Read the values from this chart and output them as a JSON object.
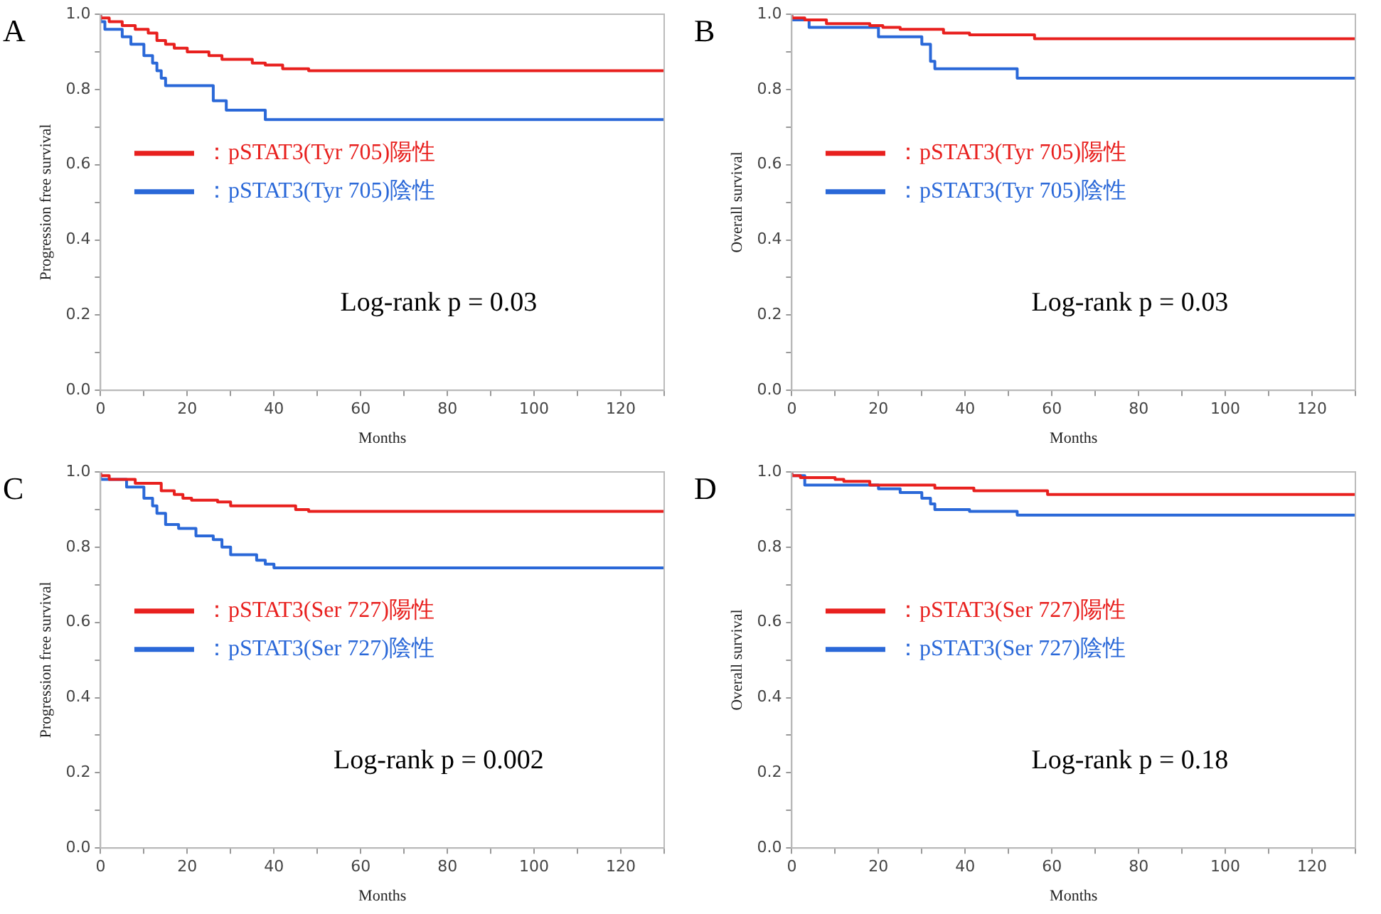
{
  "chart_data": [
    {
      "type": "step",
      "title": "A",
      "xlabel": "Months",
      "ylabel": "Progression free survival",
      "legend": "left",
      "grid": false,
      "xlim": [
        0,
        130
      ],
      "ylim": [
        0,
        1
      ],
      "xticks": [
        0,
        {
          "value": 10,
          "label": null
        },
        20,
        {
          "value": 30,
          "label": null
        },
        40,
        {
          "value": 50,
          "label": null
        },
        60,
        {
          "value": 70,
          "label": null
        },
        80,
        {
          "value": 90,
          "label": null
        },
        100,
        {
          "value": 110,
          "label": null
        },
        120,
        {
          "value": 130,
          "label": null
        }
      ],
      "yticks": [
        {
          "value": 0,
          "label": "0.0"
        },
        {
          "value": 0.1,
          "label": null
        },
        0.2,
        {
          "value": 0.3,
          "label": null
        },
        0.4,
        {
          "value": 0.5,
          "label": null
        },
        0.6,
        {
          "value": 0.7,
          "label": null
        },
        0.8,
        {
          "value": 0.9,
          "label": null
        },
        {
          "value": 1,
          "label": "1.0"
        }
      ],
      "annotations": [
        "Log-rank p = 0.03"
      ],
      "series": [
        {
          "name": "：pSTAT3(Tyr 705)陽性",
          "color": "#e8201e",
          "x": [
            0,
            2,
            5,
            8,
            11,
            13,
            15,
            17,
            20,
            25,
            28,
            35,
            38,
            42,
            48,
            59,
            130
          ],
          "values": [
            1,
            0.99,
            0.98,
            0.97,
            0.96,
            0.95,
            0.93,
            0.92,
            0.91,
            0.9,
            0.89,
            0.88,
            0.87,
            0.865,
            0.855,
            0.85,
            0.85
          ]
        },
        {
          "name": "：pSTAT3(Tyr 705)陰性",
          "color": "#2a68d8",
          "x": [
            0,
            1,
            5,
            7,
            10,
            12,
            13,
            14,
            15,
            26,
            29,
            38,
            62,
            130
          ],
          "values": [
            1,
            0.98,
            0.96,
            0.94,
            0.92,
            0.89,
            0.87,
            0.85,
            0.83,
            0.81,
            0.77,
            0.745,
            0.72,
            0.72
          ]
        }
      ]
    },
    {
      "type": "step",
      "title": "B",
      "xlabel": "Months",
      "ylabel": "Overall survival",
      "legend": "left",
      "grid": false,
      "xlim": [
        0,
        130
      ],
      "ylim": [
        0,
        1
      ],
      "xticks": [
        0,
        {
          "value": 10,
          "label": null
        },
        20,
        {
          "value": 30,
          "label": null
        },
        40,
        {
          "value": 50,
          "label": null
        },
        60,
        {
          "value": 70,
          "label": null
        },
        80,
        {
          "value": 90,
          "label": null
        },
        100,
        {
          "value": 110,
          "label": null
        },
        120,
        {
          "value": 130,
          "label": null
        }
      ],
      "yticks": [
        {
          "value": 0,
          "label": "0.0"
        },
        {
          "value": 0.1,
          "label": null
        },
        0.2,
        {
          "value": 0.3,
          "label": null
        },
        0.4,
        {
          "value": 0.5,
          "label": null
        },
        0.6,
        {
          "value": 0.7,
          "label": null
        },
        0.8,
        {
          "value": 0.9,
          "label": null
        },
        {
          "value": 1,
          "label": "1.0"
        }
      ],
      "annotations": [
        "Log-rank p = 0.03"
      ],
      "series": [
        {
          "name": "：pSTAT3(Tyr 705)陽性",
          "color": "#e8201e",
          "x": [
            0,
            3,
            8,
            18,
            21,
            25,
            35,
            41,
            56,
            59,
            130
          ],
          "values": [
            1,
            0.99,
            0.985,
            0.975,
            0.97,
            0.965,
            0.96,
            0.95,
            0.945,
            0.935,
            0.935
          ]
        },
        {
          "name": "：pSTAT3(Tyr 705)陰性",
          "color": "#2a68d8",
          "x": [
            0,
            4,
            20,
            30,
            32,
            33,
            52,
            64,
            130
          ],
          "values": [
            1,
            0.985,
            0.965,
            0.94,
            0.92,
            0.875,
            0.855,
            0.83,
            0.83
          ]
        }
      ]
    },
    {
      "type": "step",
      "title": "C",
      "xlabel": "Months",
      "ylabel": "Progression free survival",
      "legend": "left",
      "grid": false,
      "xlim": [
        0,
        130
      ],
      "ylim": [
        0,
        1
      ],
      "xticks": [
        0,
        {
          "value": 10,
          "label": null
        },
        20,
        {
          "value": 30,
          "label": null
        },
        40,
        {
          "value": 50,
          "label": null
        },
        60,
        {
          "value": 70,
          "label": null
        },
        80,
        {
          "value": 90,
          "label": null
        },
        100,
        {
          "value": 110,
          "label": null
        },
        120,
        {
          "value": 130,
          "label": null
        }
      ],
      "yticks": [
        {
          "value": 0,
          "label": "0.0"
        },
        {
          "value": 0.1,
          "label": null
        },
        0.2,
        {
          "value": 0.3,
          "label": null
        },
        0.4,
        {
          "value": 0.5,
          "label": null
        },
        0.6,
        {
          "value": 0.7,
          "label": null
        },
        0.8,
        {
          "value": 0.9,
          "label": null
        },
        {
          "value": 1,
          "label": "1.0"
        }
      ],
      "annotations": [
        "Log-rank p = 0.002"
      ],
      "series": [
        {
          "name": "：pSTAT3(Ser 727)陽性",
          "color": "#e8201e",
          "x": [
            0,
            2,
            8,
            14,
            17,
            19,
            21,
            27,
            30,
            45,
            48,
            60,
            130
          ],
          "values": [
            1,
            0.99,
            0.98,
            0.97,
            0.95,
            0.94,
            0.93,
            0.925,
            0.92,
            0.91,
            0.9,
            0.895,
            0.895
          ]
        },
        {
          "name": "：pSTAT3(Ser 727)陰性",
          "color": "#2a68d8",
          "x": [
            0,
            6,
            10,
            12,
            13,
            15,
            18,
            22,
            26,
            28,
            30,
            36,
            38,
            40,
            62,
            130
          ],
          "values": [
            1,
            0.98,
            0.96,
            0.93,
            0.91,
            0.89,
            0.86,
            0.85,
            0.83,
            0.82,
            0.8,
            0.78,
            0.765,
            0.755,
            0.745,
            0.745
          ]
        }
      ]
    },
    {
      "type": "step",
      "title": "D",
      "xlabel": "Months",
      "ylabel": "Overall survival",
      "legend": "left",
      "grid": false,
      "xlim": [
        0,
        130
      ],
      "ylim": [
        0,
        1
      ],
      "xticks": [
        0,
        {
          "value": 10,
          "label": null
        },
        20,
        {
          "value": 30,
          "label": null
        },
        40,
        {
          "value": 50,
          "label": null
        },
        60,
        {
          "value": 70,
          "label": null
        },
        80,
        {
          "value": 90,
          "label": null
        },
        100,
        {
          "value": 110,
          "label": null
        },
        120,
        {
          "value": 130,
          "label": null
        }
      ],
      "yticks": [
        {
          "value": 0,
          "label": "0.0"
        },
        {
          "value": 0.1,
          "label": null
        },
        0.2,
        {
          "value": 0.3,
          "label": null
        },
        0.4,
        {
          "value": 0.5,
          "label": null
        },
        0.6,
        {
          "value": 0.7,
          "label": null
        },
        0.8,
        {
          "value": 0.9,
          "label": null
        },
        {
          "value": 1,
          "label": "1.0"
        }
      ],
      "annotations": [
        "Log-rank p = 0.18"
      ],
      "series": [
        {
          "name": "：pSTAT3(Ser 727)陽性",
          "color": "#e8201e",
          "x": [
            0,
            2,
            10,
            12,
            18,
            33,
            42,
            59,
            64,
            130
          ],
          "values": [
            1,
            0.99,
            0.985,
            0.98,
            0.975,
            0.965,
            0.957,
            0.95,
            0.94,
            0.94
          ]
        },
        {
          "name": "：pSTAT3(Ser 727)陰性",
          "color": "#2a68d8",
          "x": [
            0,
            3,
            20,
            25,
            30,
            32,
            33,
            41,
            52,
            56,
            130
          ],
          "values": [
            1,
            0.99,
            0.965,
            0.955,
            0.945,
            0.93,
            0.915,
            0.9,
            0.895,
            0.885,
            0.885
          ]
        }
      ]
    }
  ]
}
